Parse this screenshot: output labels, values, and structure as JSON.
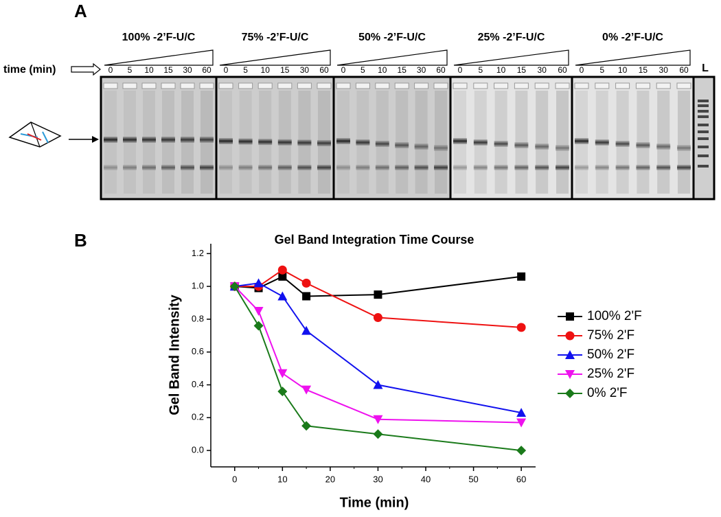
{
  "panel_a": {
    "label": "A",
    "time_label": "time (min)",
    "ladder_label": "L",
    "groups": [
      {
        "title": "100% -2’F-U/C",
        "lanes": [
          0,
          5,
          10,
          15,
          30,
          60
        ]
      },
      {
        "title": "75% -2’F-U/C",
        "lanes": [
          0,
          5,
          10,
          15,
          30,
          60
        ]
      },
      {
        "title": "50% -2’F-U/C",
        "lanes": [
          0,
          5,
          10,
          15,
          30,
          60
        ]
      },
      {
        "title": "25% -2’F-U/C",
        "lanes": [
          0,
          5,
          10,
          15,
          30,
          60
        ]
      },
      {
        "title": "0% -2’F-U/C",
        "lanes": [
          0,
          5,
          10,
          15,
          30,
          60
        ]
      }
    ]
  },
  "panel_b_label": "B",
  "chart_data": {
    "type": "line",
    "title": "Gel Band Integration Time Course",
    "x_label": "Time (min)",
    "y_label": "Gel Band Intensity",
    "x": [
      0,
      5,
      10,
      15,
      30,
      60
    ],
    "series": [
      {
        "name": "100% 2'F",
        "color": "#000000",
        "marker": "square",
        "values": [
          1.0,
          0.99,
          1.06,
          0.94,
          0.95,
          1.06
        ]
      },
      {
        "name": "75% 2'F",
        "color": "#ee1111",
        "marker": "circle",
        "values": [
          1.0,
          1.0,
          1.1,
          1.02,
          0.81,
          0.75
        ]
      },
      {
        "name": "50% 2'F",
        "color": "#1111ee",
        "marker": "triangle-up",
        "values": [
          1.0,
          1.02,
          0.94,
          0.73,
          0.4,
          0.23
        ]
      },
      {
        "name": "25% 2'F",
        "color": "#ee11ee",
        "marker": "triangle-down",
        "values": [
          1.0,
          0.85,
          0.47,
          0.37,
          0.19,
          0.17
        ]
      },
      {
        "name": "0% 2'F",
        "color": "#1a7a1a",
        "marker": "diamond",
        "values": [
          1.0,
          0.76,
          0.36,
          0.15,
          0.1,
          0.0
        ]
      }
    ],
    "xlim": [
      -5,
      63
    ],
    "ylim": [
      -0.1,
      1.26
    ],
    "xticks": [
      0,
      10,
      20,
      30,
      40,
      50,
      60
    ],
    "yticks": [
      {
        "value": 0,
        "label": "0.0"
      },
      0.2,
      0.4,
      0.6,
      0.8,
      {
        "value": 1,
        "label": "1.0"
      },
      1.2
    ],
    "legend": "right"
  }
}
